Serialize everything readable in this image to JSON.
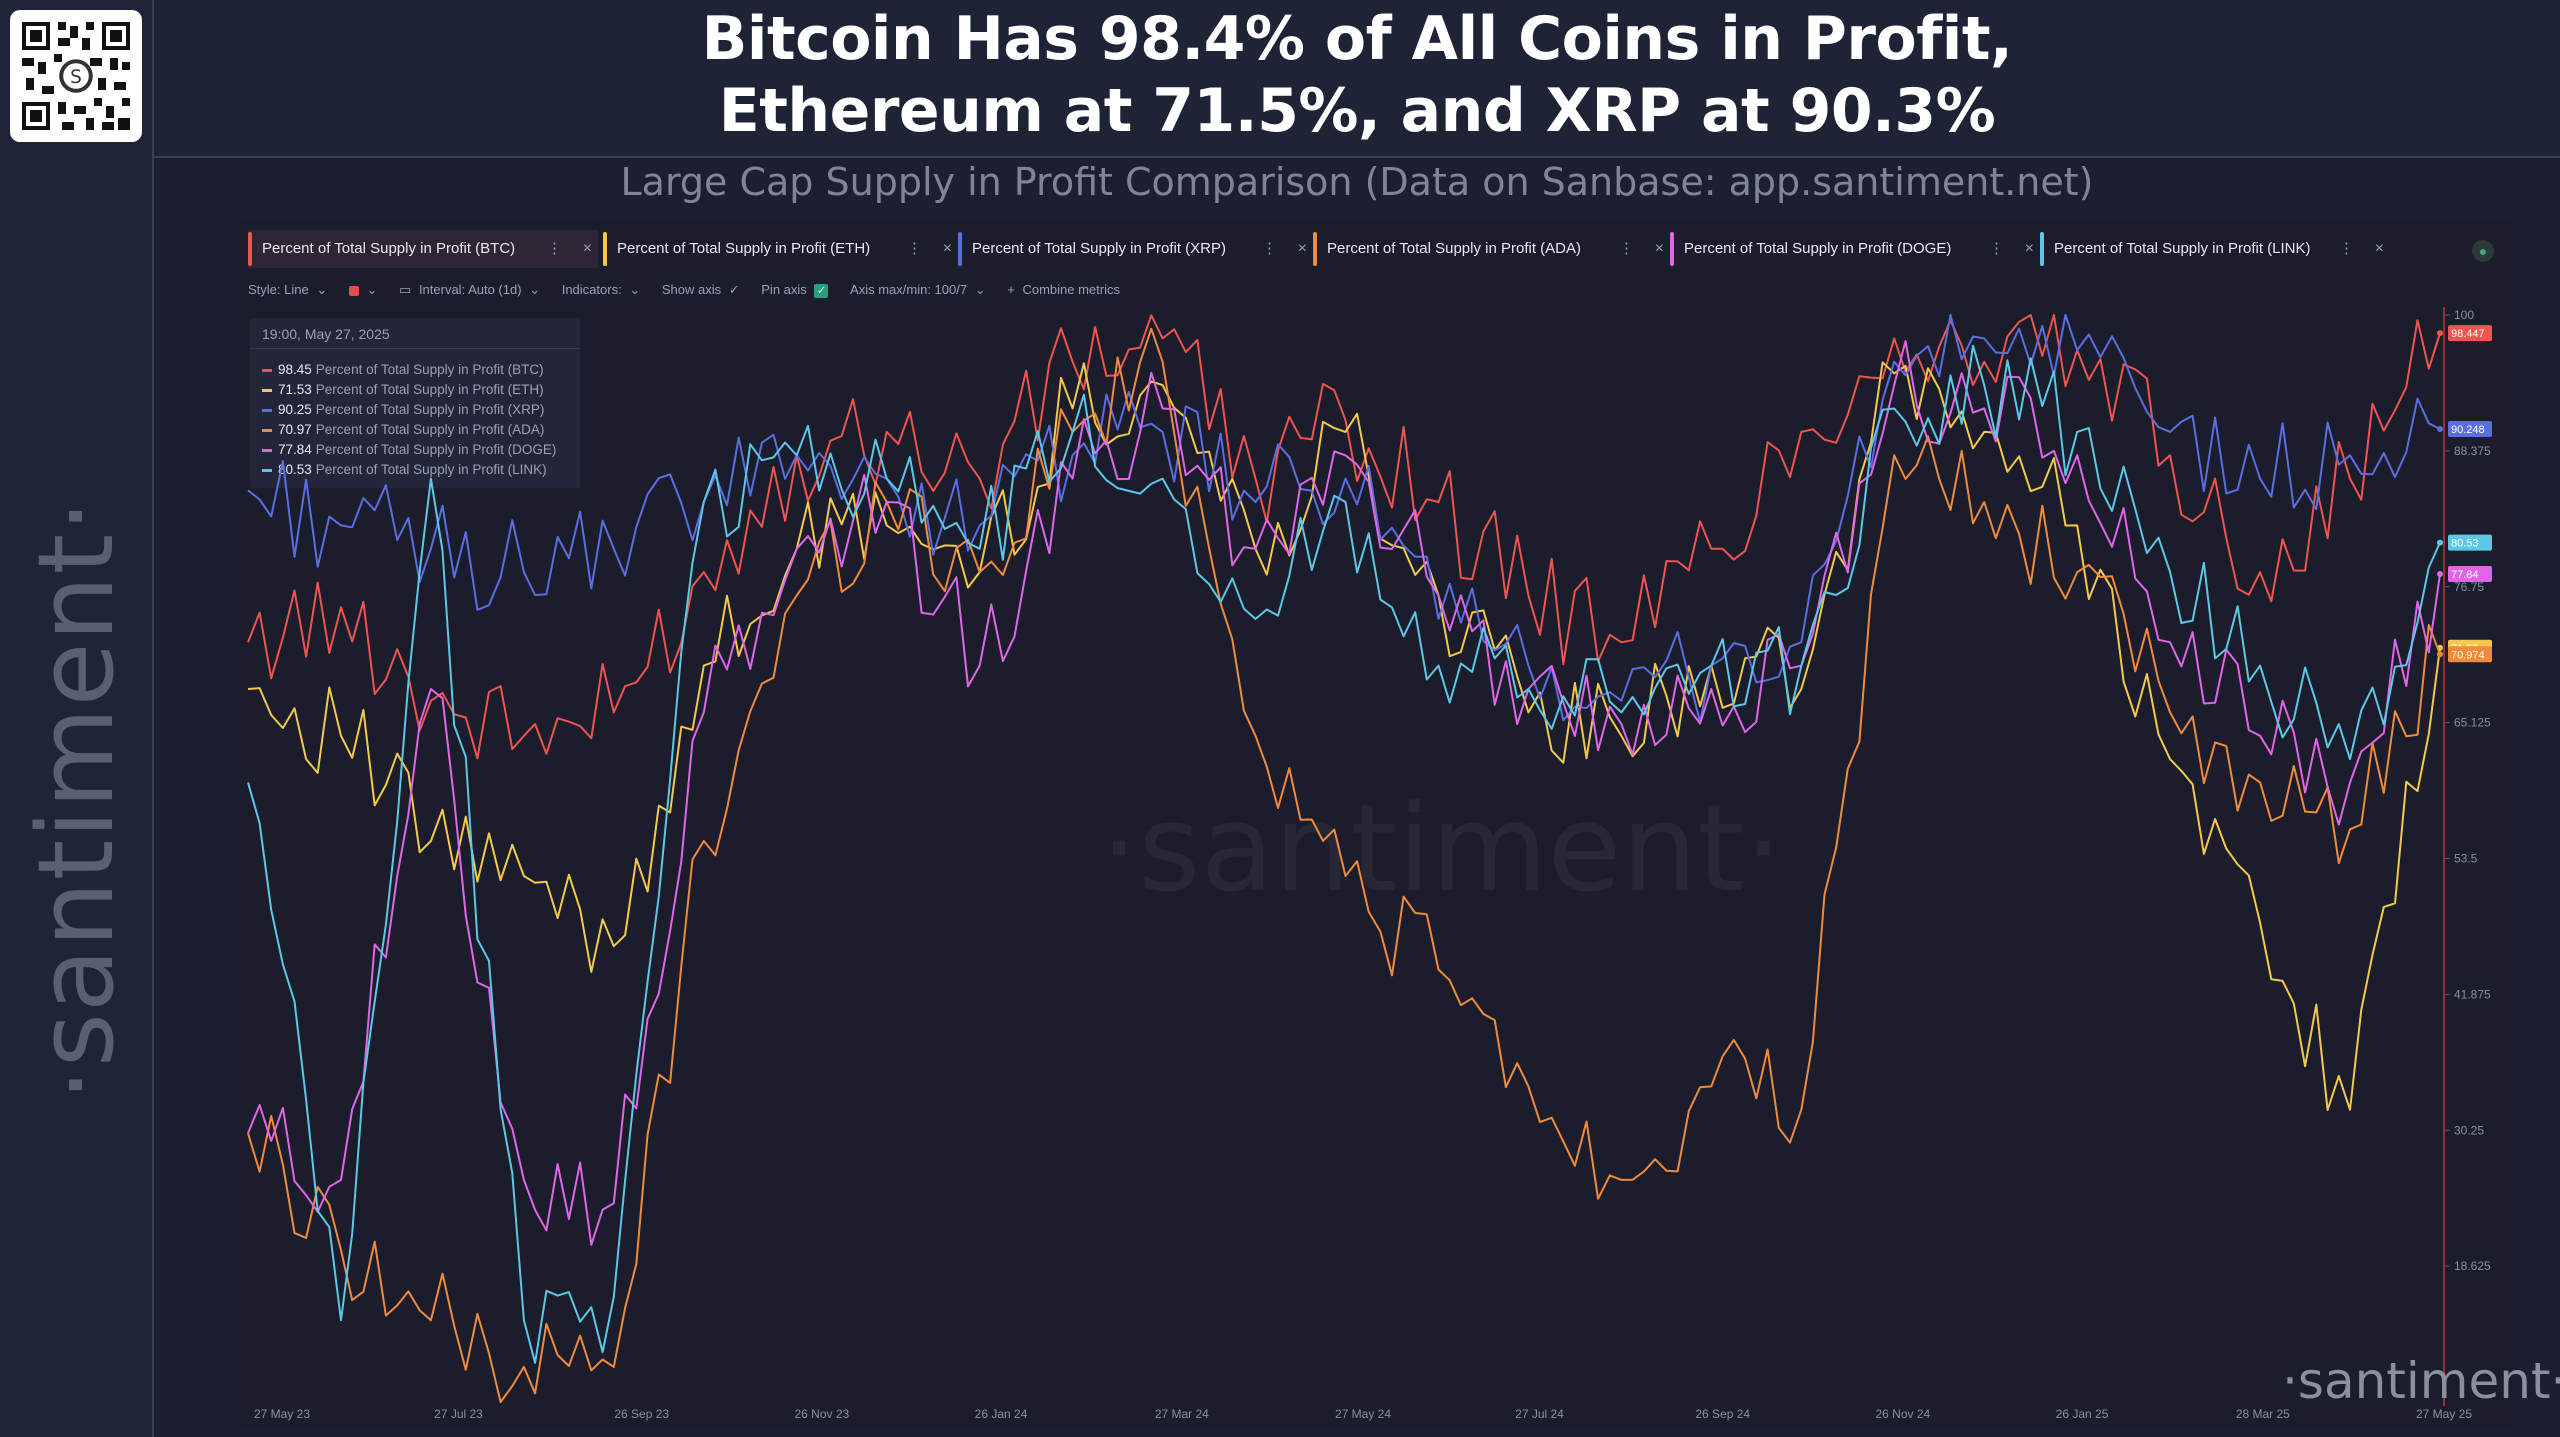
{
  "header": {
    "title_line1": "Bitcoin Has 98.4% of All Coins in Profit,",
    "title_line2": "Ethereum at 71.5%, and XRP at 90.3%",
    "subtitle": "Large Cap Supply in Profit Comparison (Data on Sanbase: app.santiment.net)"
  },
  "brand": {
    "side_logo": "·santiment·",
    "watermark": "·santiment·",
    "corner_logo": "·santiment·"
  },
  "tabs": [
    {
      "label": "Percent of Total Supply in Profit (BTC)",
      "color": "#f0544f"
    },
    {
      "label": "Percent of Total Supply in Profit (ETH)",
      "color": "#f2c94c"
    },
    {
      "label": "Percent of Total Supply in Profit (XRP)",
      "color": "#5b6ee1"
    },
    {
      "label": "Percent of Total Supply in Profit (ADA)",
      "color": "#f08a3c"
    },
    {
      "label": "Percent of Total Supply in Profit (DOGE)",
      "color": "#e066e8"
    },
    {
      "label": "Percent of Total Supply in Profit (LINK)",
      "color": "#5cc8e6"
    }
  ],
  "toolbar": {
    "style": "Style: Line",
    "interval": "Interval: Auto (1d)",
    "indicators": "Indicators:",
    "show_axis": "Show axis",
    "pin_axis": "Pin axis",
    "axis_max_min": "Axis max/min: 100/7",
    "combine": "Combine metrics"
  },
  "legend": {
    "date": "19:00, May 27, 2025",
    "rows": [
      {
        "value": "98.45",
        "label": "Percent of Total Supply in Profit (BTC)",
        "color": "#f0544f"
      },
      {
        "value": "71.53",
        "label": "Percent of Total Supply in Profit (ETH)",
        "color": "#f2c94c"
      },
      {
        "value": "90.25",
        "label": "Percent of Total Supply in Profit (XRP)",
        "color": "#5b6ee1"
      },
      {
        "value": "70.97",
        "label": "Percent of Total Supply in Profit (ADA)",
        "color": "#f08a3c"
      },
      {
        "value": "77.84",
        "label": "Percent of Total Supply in Profit (DOGE)",
        "color": "#e066e8"
      },
      {
        "value": "80.53",
        "label": "Percent of Total Supply in Profit (LINK)",
        "color": "#5cc8e6"
      }
    ]
  },
  "chart_data": {
    "type": "line",
    "ylim": [
      7,
      100
    ],
    "y_ticks": [
      "100",
      "88.375",
      "76.75",
      "65.125",
      "53.5",
      "41.875",
      "30.25",
      "18.625"
    ],
    "x_ticks": [
      "27 May 23",
      "27 Jul 23",
      "26 Sep 23",
      "26 Nov 23",
      "26 Jan 24",
      "27 Mar 24",
      "27 May 24",
      "27 Jul 24",
      "26 Sep 24",
      "26 Nov 24",
      "26 Jan 25",
      "28 Mar 25",
      "27 May 25"
    ],
    "x": [
      "2023-05-27",
      "2023-06-27",
      "2023-07-27",
      "2023-08-27",
      "2023-09-26",
      "2023-10-26",
      "2023-11-26",
      "2023-12-26",
      "2024-01-26",
      "2024-02-26",
      "2024-03-27",
      "2024-04-27",
      "2024-05-27",
      "2024-06-27",
      "2024-07-27",
      "2024-08-27",
      "2024-09-26",
      "2024-10-26",
      "2024-11-26",
      "2024-12-26",
      "2025-01-26",
      "2025-02-26",
      "2025-03-28",
      "2025-04-27",
      "2025-05-27"
    ],
    "series": [
      {
        "name": "Percent of Total Supply in Profit (BTC)",
        "color": "#f0544f",
        "values": [
          72,
          75,
          67,
          64,
          66,
          78,
          88,
          90,
          86,
          96,
          98,
          86,
          91,
          84,
          76,
          72,
          80,
          90,
          98,
          96,
          97,
          88,
          78,
          86,
          98.45
        ]
      },
      {
        "name": "Percent of Total Supply in Profit (ETH)",
        "color": "#f2c94c",
        "values": [
          68,
          64,
          55,
          52,
          46,
          70,
          80,
          82,
          78,
          92,
          94,
          80,
          90,
          76,
          66,
          64,
          70,
          68,
          95,
          90,
          82,
          62,
          48,
          32,
          71.53
        ]
      },
      {
        "name": "Percent of Total Supply in Profit (XRP)",
        "color": "#5b6ee1",
        "values": [
          85,
          82,
          80,
          78,
          80,
          84,
          88,
          86,
          82,
          88,
          90,
          84,
          86,
          74,
          70,
          67,
          70,
          72,
          96,
          98,
          97,
          90,
          86,
          88,
          90.25
        ]
      },
      {
        "name": "Percent of Total Supply in Profit (ADA)",
        "color": "#f08a3c",
        "values": [
          30,
          20,
          14,
          10,
          10,
          55,
          76,
          84,
          78,
          90,
          96,
          64,
          52,
          44,
          34,
          26,
          34,
          32,
          88,
          84,
          78,
          66,
          60,
          56,
          70.97
        ]
      },
      {
        "name": "Percent of Total Supply in Profit (DOGE)",
        "color": "#e066e8",
        "values": [
          30,
          26,
          68,
          26,
          24,
          66,
          80,
          84,
          70,
          86,
          92,
          80,
          88,
          76,
          68,
          65,
          68,
          70,
          94,
          92,
          88,
          72,
          64,
          60,
          77.84
        ]
      },
      {
        "name": "Percent of Total Supply in Profit (LINK)",
        "color": "#5cc8e6",
        "values": [
          60,
          14,
          86,
          14,
          16,
          84,
          88,
          86,
          80,
          90,
          86,
          74,
          84,
          70,
          68,
          66,
          70,
          70,
          92,
          94,
          90,
          78,
          70,
          62,
          80.53
        ]
      }
    ],
    "last_values": [
      "98.447",
      "90.248",
      "80.53",
      "77.84",
      "71.53",
      "70.974"
    ]
  }
}
